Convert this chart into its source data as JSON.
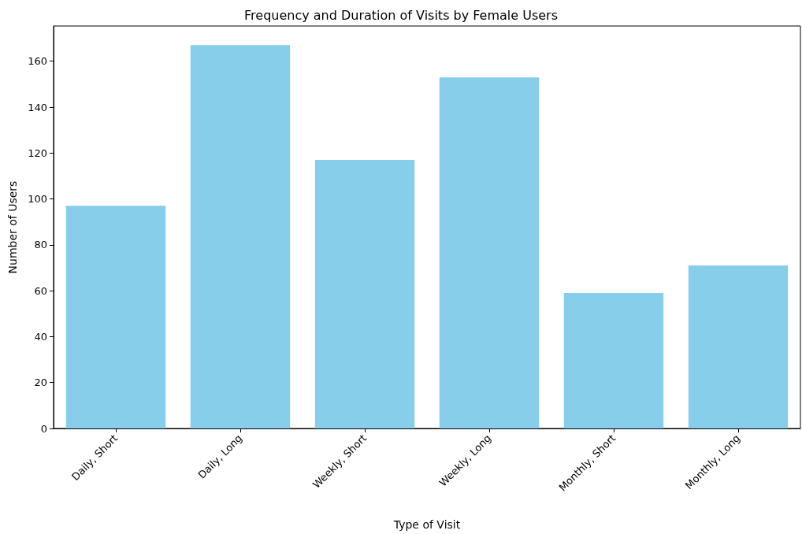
{
  "chart_data": {
    "type": "bar",
    "title": "Frequency and Duration of Visits by Female Users",
    "xlabel": "Type of Visit",
    "ylabel": "Number of Users",
    "categories": [
      "Daily, Short",
      "Daily, Long",
      "Weekly, Short",
      "Weekly, Long",
      "Monthly, Short",
      "Monthly, Long"
    ],
    "values": [
      97,
      167,
      117,
      153,
      59,
      71
    ],
    "color": "#87ceeb",
    "ylim": [
      0,
      175.35
    ],
    "yticks": [
      0,
      20,
      40,
      60,
      80,
      100,
      120,
      140,
      160
    ],
    "grid": false
  }
}
